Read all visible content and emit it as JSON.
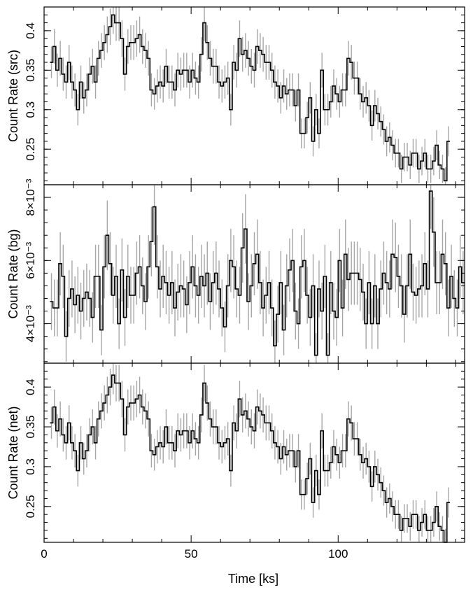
{
  "chart_data": [
    {
      "type": "line",
      "ylabel": "Count Rate (src)",
      "xlim": [
        0,
        143
      ],
      "ylim": [
        0.205,
        0.43
      ],
      "yticks": [
        {
          "v": 0.25,
          "label": "0.25"
        },
        {
          "v": 0.3,
          "label": "0.3"
        },
        {
          "v": 0.35,
          "label": "0.35"
        },
        {
          "v": 0.4,
          "label": "0.4"
        }
      ],
      "bin_width": 1,
      "x_start": 2,
      "values": [
        0.36,
        0.38,
        0.35,
        0.365,
        0.345,
        0.335,
        0.36,
        0.335,
        0.325,
        0.3,
        0.335,
        0.315,
        0.325,
        0.345,
        0.355,
        0.335,
        0.365,
        0.375,
        0.385,
        0.395,
        0.405,
        0.42,
        0.41,
        0.41,
        0.39,
        0.345,
        0.38,
        0.385,
        0.385,
        0.39,
        0.395,
        0.38,
        0.375,
        0.365,
        0.325,
        0.32,
        0.33,
        0.335,
        0.33,
        0.355,
        0.335,
        0.335,
        0.325,
        0.35,
        0.345,
        0.35,
        0.35,
        0.335,
        0.35,
        0.34,
        0.335,
        0.37,
        0.41,
        0.385,
        0.365,
        0.355,
        0.355,
        0.335,
        0.33,
        0.335,
        0.34,
        0.3,
        0.36,
        0.35,
        0.39,
        0.37,
        0.375,
        0.365,
        0.355,
        0.35,
        0.38,
        0.375,
        0.37,
        0.36,
        0.36,
        0.35,
        0.335,
        0.33,
        0.315,
        0.33,
        0.32,
        0.325,
        0.325,
        0.305,
        0.325,
        0.27,
        0.27,
        0.29,
        0.315,
        0.26,
        0.3,
        0.27,
        0.35,
        0.3,
        0.3,
        0.31,
        0.33,
        0.32,
        0.31,
        0.325,
        0.325,
        0.365,
        0.36,
        0.34,
        0.34,
        0.32,
        0.31,
        0.315,
        0.305,
        0.28,
        0.305,
        0.295,
        0.285,
        0.275,
        0.26,
        0.265,
        0.255,
        0.245,
        0.245,
        0.225,
        0.24,
        0.24,
        0.23,
        0.245,
        0.245,
        0.225,
        0.235,
        0.245,
        0.225,
        0.225,
        0.235,
        0.255,
        0.23,
        0.225,
        0.21,
        0.26
      ],
      "errors": [
        0.02,
        0.022,
        0.021,
        0.022,
        0.021,
        0.021,
        0.022,
        0.021,
        0.021,
        0.02,
        0.021,
        0.02,
        0.021,
        0.021,
        0.022,
        0.021,
        0.022,
        0.022,
        0.022,
        0.023,
        0.023,
        0.024,
        0.023,
        0.023,
        0.023,
        0.021,
        0.022,
        0.022,
        0.022,
        0.023,
        0.023,
        0.022,
        0.022,
        0.022,
        0.021,
        0.02,
        0.021,
        0.021,
        0.021,
        0.022,
        0.021,
        0.021,
        0.021,
        0.022,
        0.021,
        0.022,
        0.022,
        0.021,
        0.022,
        0.021,
        0.021,
        0.022,
        0.023,
        0.022,
        0.022,
        0.022,
        0.022,
        0.021,
        0.021,
        0.021,
        0.021,
        0.02,
        0.022,
        0.022,
        0.023,
        0.022,
        0.022,
        0.022,
        0.022,
        0.022,
        0.022,
        0.022,
        0.022,
        0.022,
        0.022,
        0.022,
        0.021,
        0.021,
        0.02,
        0.021,
        0.02,
        0.021,
        0.021,
        0.02,
        0.021,
        0.019,
        0.019,
        0.02,
        0.02,
        0.019,
        0.02,
        0.019,
        0.022,
        0.02,
        0.02,
        0.02,
        0.021,
        0.02,
        0.02,
        0.021,
        0.021,
        0.022,
        0.022,
        0.021,
        0.021,
        0.02,
        0.02,
        0.02,
        0.02,
        0.019,
        0.02,
        0.02,
        0.019,
        0.019,
        0.019,
        0.019,
        0.019,
        0.018,
        0.018,
        0.018,
        0.018,
        0.018,
        0.018,
        0.018,
        0.018,
        0.018,
        0.018,
        0.018,
        0.018,
        0.018,
        0.018,
        0.019,
        0.018,
        0.018,
        0.017,
        0.019
      ]
    },
    {
      "type": "line",
      "ylabel": "Count Rate (bg)",
      "xlim": [
        0,
        143
      ],
      "ylim": [
        0.00275,
        0.0084
      ],
      "yticks": [
        {
          "v": 0.004,
          "label": "4×10⁻³"
        },
        {
          "v": 0.006,
          "label": "6×10⁻³"
        },
        {
          "v": 0.008,
          "label": "8×10⁻³"
        }
      ],
      "bin_width": 1,
      "x_start": 2,
      "values": [
        0.0047,
        0.0045,
        0.0045,
        0.0059,
        0.0055,
        0.0036,
        0.0048,
        0.0051,
        0.0046,
        0.0049,
        0.0044,
        0.0048,
        0.005,
        0.0048,
        0.0042,
        0.0055,
        0.0055,
        0.0038,
        0.0058,
        0.0068,
        0.0059,
        0.0049,
        0.0055,
        0.004,
        0.0057,
        0.0042,
        0.0055,
        0.0049,
        0.0049,
        0.0056,
        0.0058,
        0.0052,
        0.0047,
        0.0058,
        0.0066,
        0.0077,
        0.0058,
        0.0051,
        0.0055,
        0.0053,
        0.0049,
        0.0053,
        0.0045,
        0.005,
        0.0052,
        0.0051,
        0.0046,
        0.0053,
        0.0058,
        0.0052,
        0.0049,
        0.0055,
        0.0052,
        0.0056,
        0.0047,
        0.0053,
        0.0056,
        0.0051,
        0.0045,
        0.0039,
        0.0052,
        0.006,
        0.0058,
        0.0051,
        0.0049,
        0.0064,
        0.007,
        0.0047,
        0.0052,
        0.0059,
        0.0062,
        0.0053,
        0.0045,
        0.0049,
        0.0053,
        0.0045,
        0.0033,
        0.0043,
        0.0053,
        0.0038,
        0.0052,
        0.0057,
        0.006,
        0.0044,
        0.004,
        0.0058,
        0.006,
        0.0049,
        0.0042,
        0.0052,
        0.003,
        0.0051,
        0.0044,
        0.0055,
        0.003,
        0.0053,
        0.0044,
        0.0042,
        0.006,
        0.0045,
        0.0062,
        0.0054,
        0.0056,
        0.0056,
        0.0056,
        0.0054,
        0.005,
        0.004,
        0.0053,
        0.004,
        0.0052,
        0.004,
        0.0051,
        0.0056,
        0.0053,
        0.0051,
        0.0062,
        0.0061,
        0.0055,
        0.0052,
        0.0043,
        0.0052,
        0.0062,
        0.005,
        0.0049,
        0.0051,
        0.0052,
        0.0059,
        0.0051,
        0.0082,
        0.0069,
        0.0053,
        0.0053,
        0.0062,
        0.0059,
        0.0045,
        0.0055,
        0.0048,
        0.0045,
        0.0058,
        0.0053
      ],
      "errors": [
        0.0009,
        0.0009,
        0.0009,
        0.001,
        0.001,
        0.0008,
        0.0009,
        0.0009,
        0.0009,
        0.0009,
        0.0009,
        0.0009,
        0.0009,
        0.0009,
        0.0008,
        0.001,
        0.001,
        0.0008,
        0.001,
        0.0011,
        0.001,
        0.0009,
        0.001,
        0.0008,
        0.001,
        0.0009,
        0.001,
        0.0009,
        0.0009,
        0.001,
        0.001,
        0.0009,
        0.0009,
        0.001,
        0.0011,
        0.0012,
        0.001,
        0.0009,
        0.001,
        0.001,
        0.0009,
        0.001,
        0.0009,
        0.0009,
        0.001,
        0.0009,
        0.0009,
        0.001,
        0.001,
        0.001,
        0.0009,
        0.001,
        0.001,
        0.001,
        0.0009,
        0.001,
        0.001,
        0.0009,
        0.0009,
        0.0008,
        0.001,
        0.001,
        0.001,
        0.0009,
        0.0009,
        0.0011,
        0.0011,
        0.0009,
        0.001,
        0.001,
        0.0011,
        0.001,
        0.0009,
        0.0009,
        0.001,
        0.0009,
        0.0008,
        0.0009,
        0.001,
        0.0008,
        0.001,
        0.001,
        0.001,
        0.0009,
        0.0008,
        0.001,
        0.001,
        0.0009,
        0.0009,
        0.001,
        0.0007,
        0.0009,
        0.0009,
        0.001,
        0.0007,
        0.001,
        0.0009,
        0.0009,
        0.001,
        0.0009,
        0.0011,
        0.001,
        0.001,
        0.001,
        0.001,
        0.001,
        0.0009,
        0.0008,
        0.001,
        0.0008,
        0.001,
        0.0008,
        0.0009,
        0.001,
        0.001,
        0.0009,
        0.0011,
        0.0011,
        0.001,
        0.001,
        0.0009,
        0.001,
        0.0011,
        0.0009,
        0.0009,
        0.0009,
        0.001,
        0.001,
        0.0009,
        0.0012,
        0.0011,
        0.001,
        0.001,
        0.0011,
        0.001,
        0.0009,
        0.001,
        0.0009,
        0.0009,
        0.001,
        0.001
      ]
    },
    {
      "type": "line",
      "ylabel": "Count Rate (net)",
      "xlabel": "Time [ks]",
      "xlim": [
        0,
        143
      ],
      "ylim": [
        0.205,
        0.43
      ],
      "xticks": [
        {
          "v": 0,
          "label": "0"
        },
        {
          "v": 50,
          "label": "50"
        },
        {
          "v": 100,
          "label": "100"
        }
      ],
      "yticks": [
        {
          "v": 0.25,
          "label": "0.25"
        },
        {
          "v": 0.3,
          "label": "0.3"
        },
        {
          "v": 0.35,
          "label": "0.35"
        },
        {
          "v": 0.4,
          "label": "0.4"
        }
      ],
      "bin_width": 1,
      "x_start": 2,
      "values": [
        0.355,
        0.375,
        0.345,
        0.36,
        0.34,
        0.33,
        0.355,
        0.33,
        0.32,
        0.295,
        0.33,
        0.31,
        0.32,
        0.34,
        0.35,
        0.33,
        0.36,
        0.37,
        0.38,
        0.39,
        0.4,
        0.415,
        0.405,
        0.405,
        0.385,
        0.34,
        0.375,
        0.38,
        0.38,
        0.385,
        0.39,
        0.375,
        0.37,
        0.36,
        0.32,
        0.315,
        0.325,
        0.33,
        0.325,
        0.35,
        0.33,
        0.33,
        0.32,
        0.345,
        0.34,
        0.345,
        0.345,
        0.33,
        0.345,
        0.335,
        0.33,
        0.365,
        0.405,
        0.38,
        0.36,
        0.35,
        0.35,
        0.33,
        0.325,
        0.33,
        0.335,
        0.295,
        0.355,
        0.345,
        0.385,
        0.365,
        0.37,
        0.36,
        0.35,
        0.345,
        0.375,
        0.37,
        0.365,
        0.355,
        0.355,
        0.345,
        0.33,
        0.325,
        0.31,
        0.325,
        0.315,
        0.32,
        0.32,
        0.3,
        0.32,
        0.265,
        0.265,
        0.285,
        0.31,
        0.255,
        0.295,
        0.265,
        0.345,
        0.295,
        0.295,
        0.305,
        0.325,
        0.315,
        0.305,
        0.32,
        0.32,
        0.36,
        0.355,
        0.335,
        0.335,
        0.315,
        0.305,
        0.31,
        0.3,
        0.275,
        0.3,
        0.29,
        0.28,
        0.27,
        0.255,
        0.26,
        0.25,
        0.24,
        0.24,
        0.22,
        0.235,
        0.235,
        0.225,
        0.24,
        0.24,
        0.22,
        0.23,
        0.24,
        0.22,
        0.22,
        0.23,
        0.25,
        0.225,
        0.22,
        0.205,
        0.255
      ],
      "errors": [
        0.02,
        0.022,
        0.021,
        0.022,
        0.021,
        0.021,
        0.022,
        0.021,
        0.021,
        0.02,
        0.021,
        0.02,
        0.021,
        0.021,
        0.022,
        0.021,
        0.022,
        0.022,
        0.022,
        0.023,
        0.023,
        0.024,
        0.023,
        0.023,
        0.023,
        0.021,
        0.022,
        0.022,
        0.022,
        0.023,
        0.023,
        0.022,
        0.022,
        0.022,
        0.021,
        0.02,
        0.021,
        0.021,
        0.021,
        0.022,
        0.021,
        0.021,
        0.021,
        0.022,
        0.021,
        0.022,
        0.022,
        0.021,
        0.022,
        0.021,
        0.021,
        0.022,
        0.023,
        0.022,
        0.022,
        0.022,
        0.022,
        0.021,
        0.021,
        0.021,
        0.021,
        0.02,
        0.022,
        0.022,
        0.023,
        0.022,
        0.022,
        0.022,
        0.022,
        0.022,
        0.022,
        0.022,
        0.022,
        0.022,
        0.022,
        0.022,
        0.021,
        0.021,
        0.02,
        0.021,
        0.02,
        0.021,
        0.021,
        0.02,
        0.021,
        0.019,
        0.019,
        0.02,
        0.02,
        0.019,
        0.02,
        0.019,
        0.022,
        0.02,
        0.02,
        0.02,
        0.021,
        0.02,
        0.02,
        0.021,
        0.021,
        0.022,
        0.022,
        0.021,
        0.021,
        0.02,
        0.02,
        0.02,
        0.02,
        0.019,
        0.02,
        0.02,
        0.019,
        0.019,
        0.019,
        0.019,
        0.019,
        0.018,
        0.018,
        0.018,
        0.018,
        0.018,
        0.018,
        0.018,
        0.018,
        0.018,
        0.018,
        0.018,
        0.018,
        0.018,
        0.018,
        0.019,
        0.018,
        0.018,
        0.017,
        0.019
      ]
    }
  ]
}
